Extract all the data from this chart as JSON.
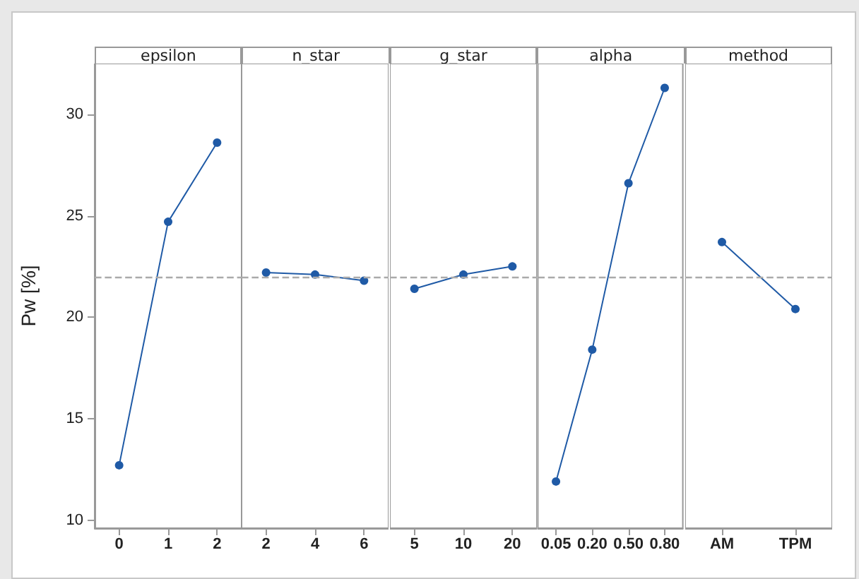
{
  "chart_data": [
    {
      "type": "line",
      "title": "epsilon",
      "ylabel": "Pw [%]",
      "categories": [
        "0",
        "1",
        "2"
      ],
      "values": [
        12.7,
        24.7,
        28.6
      ],
      "color": "#1f5aa6",
      "marker": "circle",
      "ylim": [
        9.6,
        32.5
      ],
      "yticks": [
        10,
        15,
        20,
        25,
        30
      ],
      "ref_lines": [
        {
          "axis": "y",
          "value": 22.0,
          "color": "#aaaaaa",
          "line_style": "dashed"
        }
      ]
    },
    {
      "type": "line",
      "title": "n_star",
      "categories": [
        "2",
        "4",
        "6"
      ],
      "values": [
        22.2,
        22.1,
        21.8
      ],
      "color": "#1f5aa6",
      "marker": "circle",
      "ylim": [
        9.6,
        32.5
      ],
      "yticks": [
        10,
        15,
        20,
        25,
        30
      ],
      "tick_labels": "x",
      "ref_lines": [
        {
          "axis": "y",
          "value": 22.0,
          "color": "#aaaaaa",
          "line_style": "dashed"
        }
      ]
    },
    {
      "type": "line",
      "title": "g_star",
      "categories": [
        "5",
        "10",
        "20"
      ],
      "values": [
        21.4,
        22.1,
        22.5
      ],
      "color": "#1f5aa6",
      "marker": "circle",
      "ylim": [
        9.6,
        32.5
      ],
      "yticks": [
        10,
        15,
        20,
        25,
        30
      ],
      "tick_labels": "x",
      "ref_lines": [
        {
          "axis": "y",
          "value": 22.0,
          "color": "#aaaaaa",
          "line_style": "dashed"
        }
      ]
    },
    {
      "type": "line",
      "title": "alpha",
      "categories": [
        "0.05",
        "0.20",
        "0.50",
        "0.80"
      ],
      "values": [
        11.9,
        18.4,
        26.6,
        31.3
      ],
      "color": "#1f5aa6",
      "marker": "circle",
      "ylim": [
        9.6,
        32.5
      ],
      "yticks": [
        10,
        15,
        20,
        25,
        30
      ],
      "tick_labels": "x",
      "ref_lines": [
        {
          "axis": "y",
          "value": 22.0,
          "color": "#aaaaaa",
          "line_style": "dashed"
        }
      ]
    },
    {
      "type": "line",
      "title": "method",
      "categories": [
        "AM",
        "TPM"
      ],
      "values": [
        23.7,
        20.4
      ],
      "color": "#1f5aa6",
      "marker": "circle",
      "ylim": [
        9.6,
        32.5
      ],
      "yticks": [
        10,
        15,
        20,
        25,
        30
      ],
      "tick_labels": "x",
      "ref_lines": [
        {
          "axis": "y",
          "value": 22.0,
          "color": "#aaaaaa",
          "line_style": "dashed"
        }
      ]
    }
  ]
}
